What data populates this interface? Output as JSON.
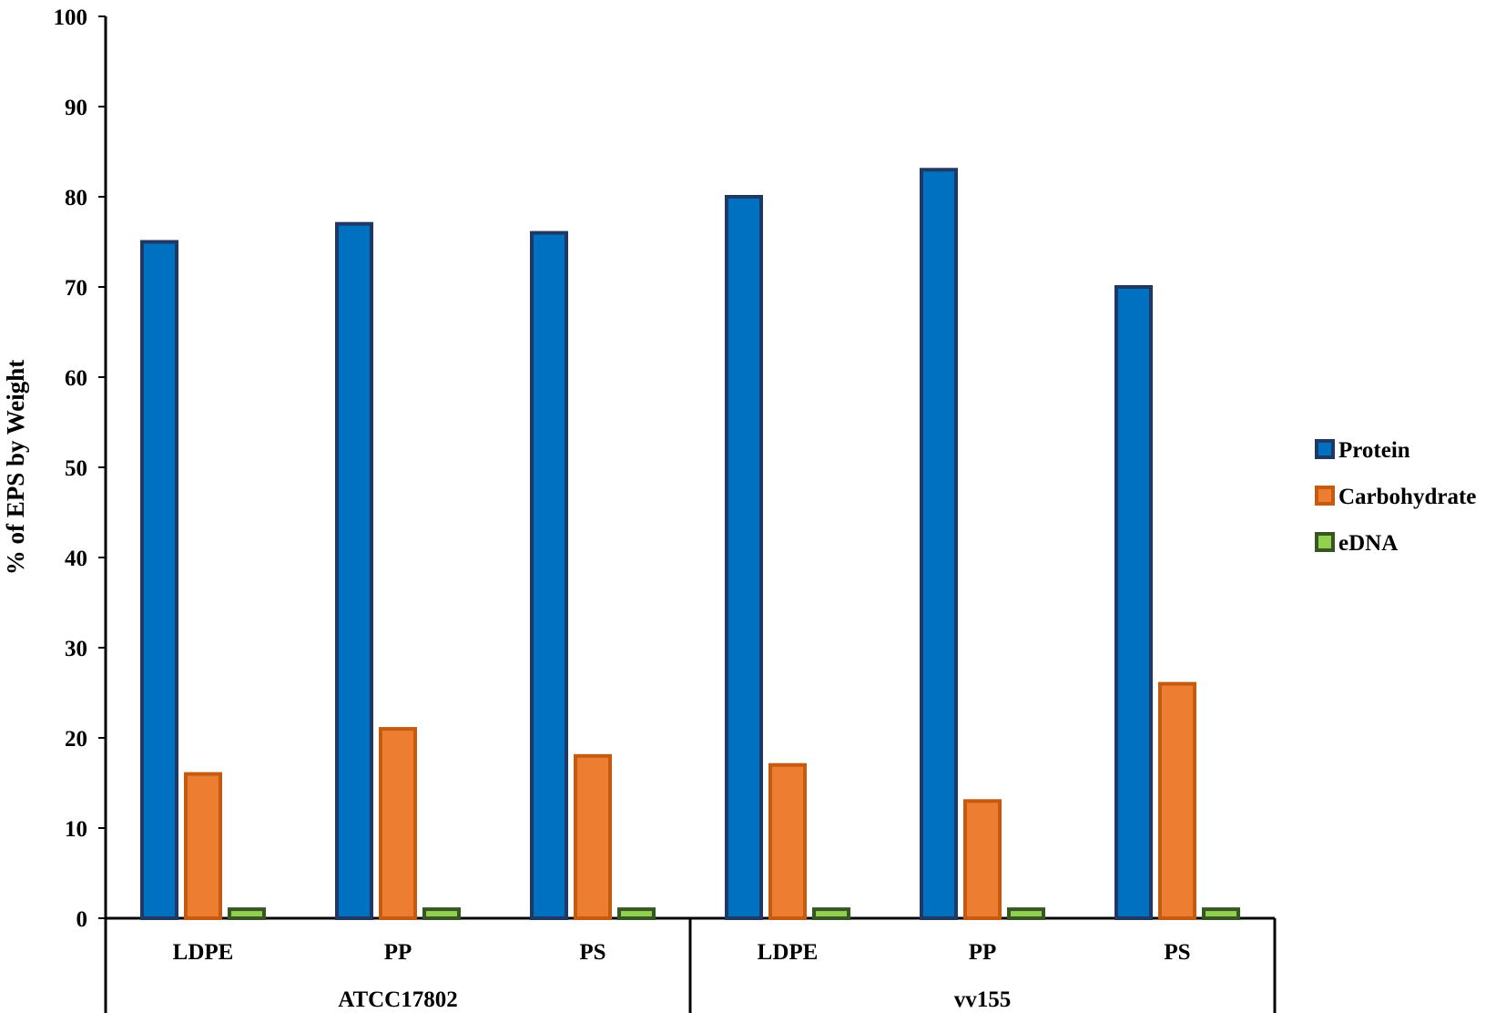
{
  "chart_data": {
    "type": "bar",
    "title": "",
    "ylabel": "% of EPS by Weight",
    "xlabel": "",
    "ylim": [
      0,
      100
    ],
    "yticks": [
      0,
      10,
      20,
      30,
      40,
      50,
      60,
      70,
      80,
      90,
      100
    ],
    "grid": false,
    "legend_position": "right",
    "groups": [
      {
        "label": "ATCC17802",
        "categories": [
          "LDPE",
          "PP",
          "PS"
        ]
      },
      {
        "label": "vv155",
        "categories": [
          "LDPE",
          "PP",
          "PS"
        ]
      }
    ],
    "categories": [
      "LDPE",
      "PP",
      "PS",
      "LDPE",
      "PP",
      "PS"
    ],
    "series": [
      {
        "name": "Protein",
        "color": "#0070C0",
        "border": "#1F3864",
        "values": [
          75,
          77,
          76,
          80,
          83,
          70
        ]
      },
      {
        "name": "Carbohydrate",
        "color": "#ED7D31",
        "border": "#C55A11",
        "values": [
          16,
          21,
          18,
          17,
          13,
          26
        ]
      },
      {
        "name": "eDNA",
        "color": "#92D050",
        "border": "#375623",
        "values": [
          1,
          1,
          1,
          1,
          1,
          1
        ]
      }
    ]
  }
}
